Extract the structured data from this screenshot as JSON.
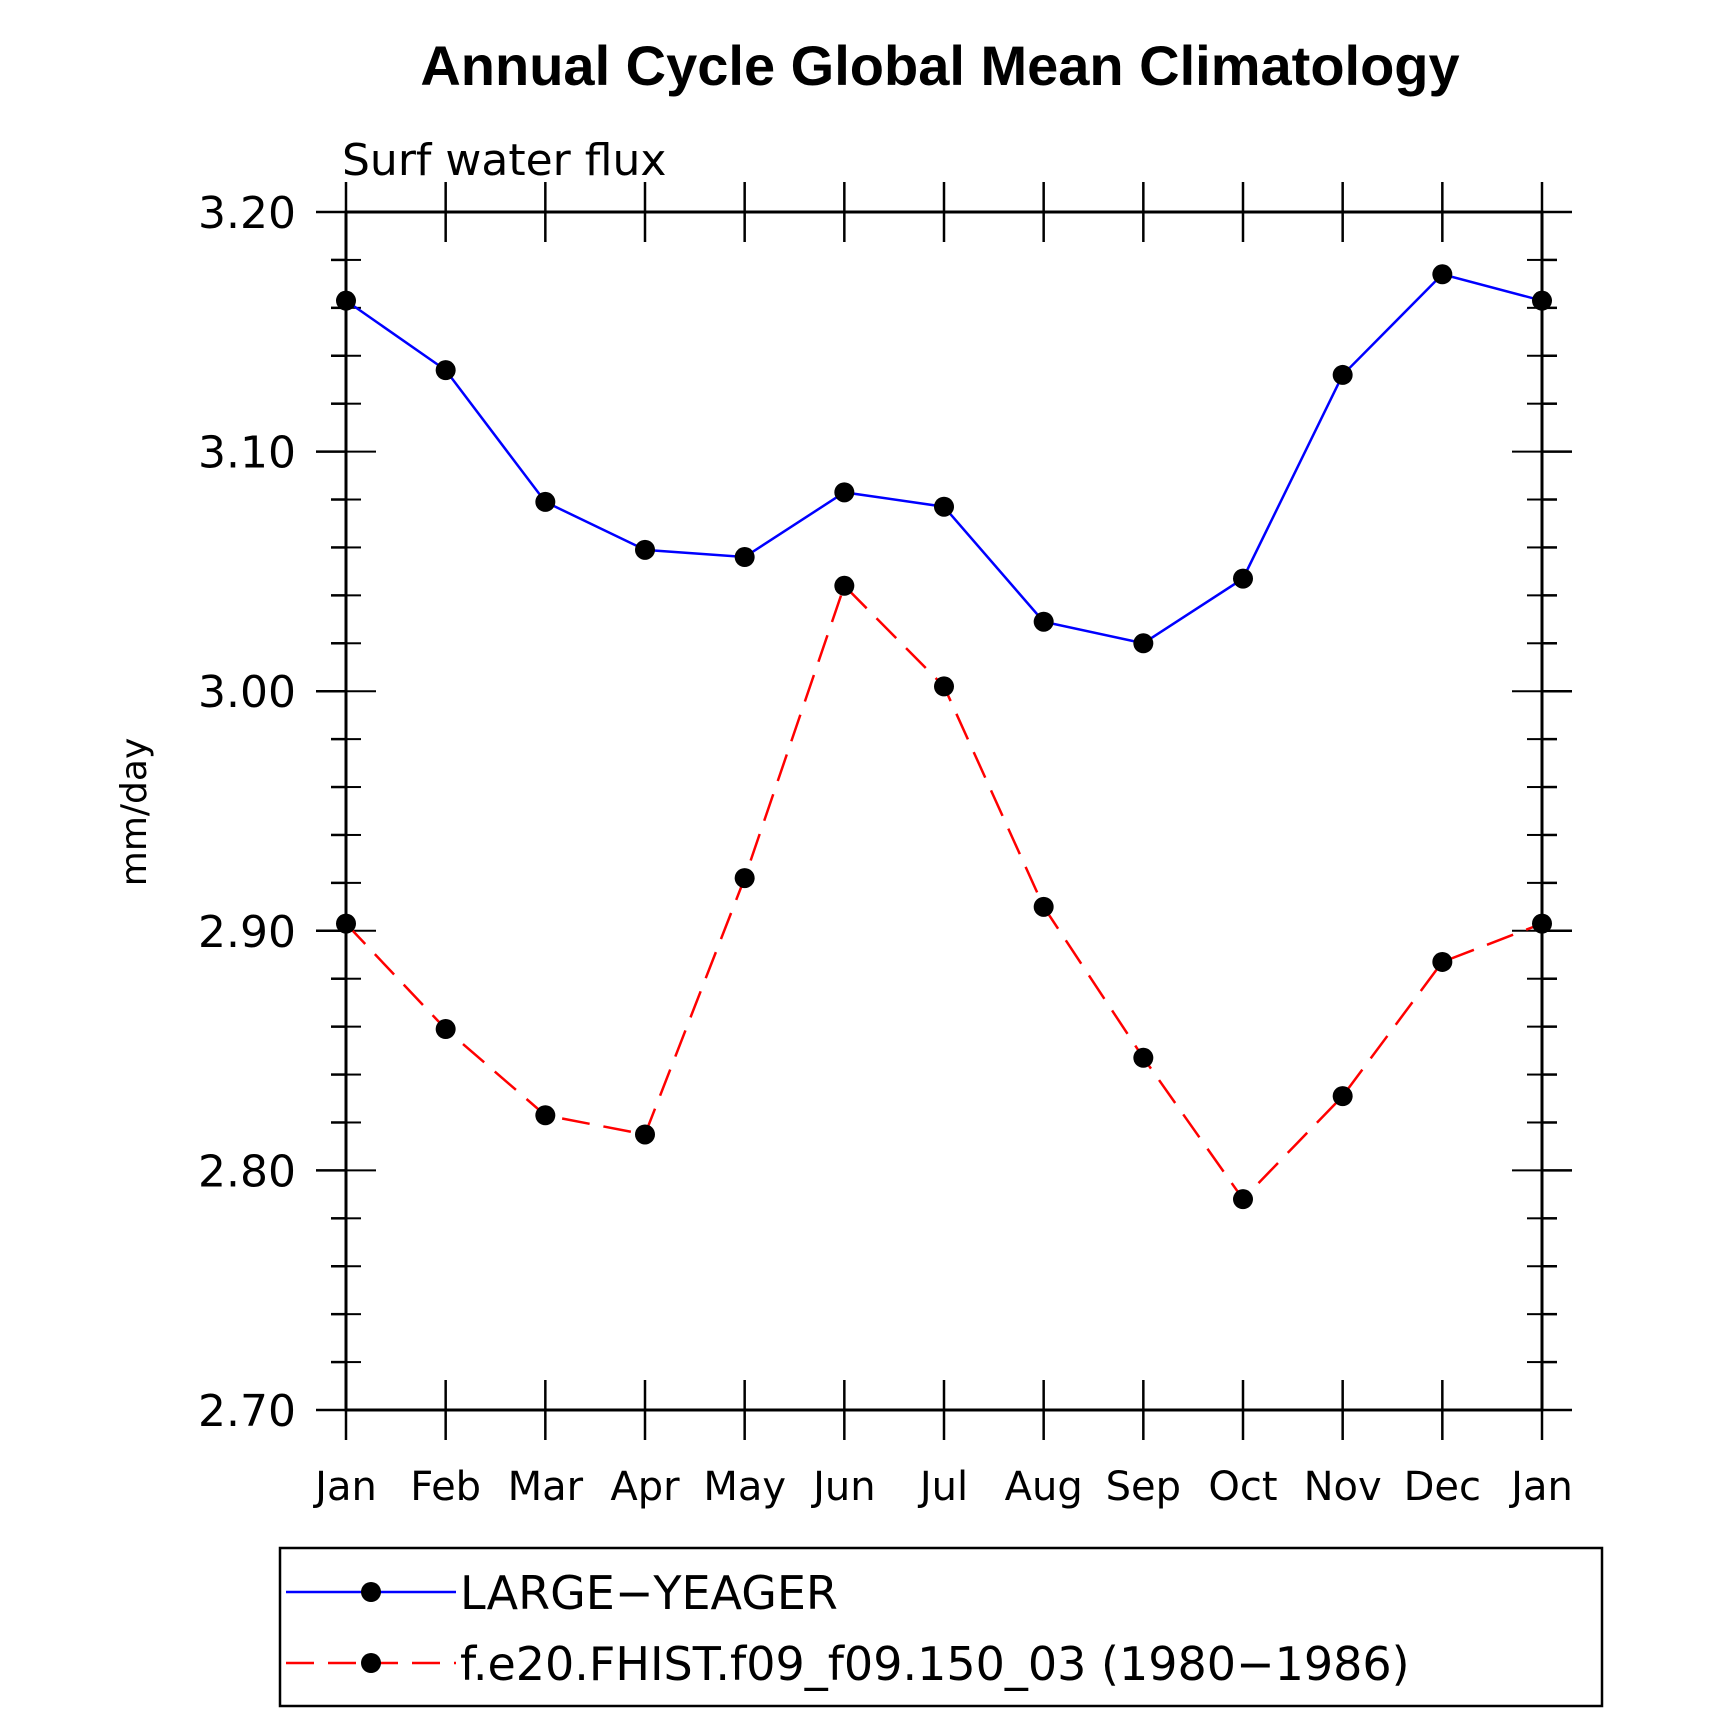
{
  "chart_data": {
    "type": "line",
    "title": "Annual Cycle Global Mean Climatology",
    "subtitle": "Surf water flux",
    "xlabel": "",
    "ylabel": "mm/day",
    "categories": [
      "Jan",
      "Feb",
      "Mar",
      "Apr",
      "May",
      "Jun",
      "Jul",
      "Aug",
      "Sep",
      "Oct",
      "Nov",
      "Dec",
      "Jan"
    ],
    "ylim": [
      2.7,
      3.2
    ],
    "yticks": [
      "2.70",
      "2.80",
      "2.90",
      "3.00",
      "3.10",
      "3.20"
    ],
    "series": [
      {
        "name": "LARGE−YEAGER",
        "color": "#0000ff",
        "dash": "solid",
        "values": [
          3.163,
          3.134,
          3.079,
          3.059,
          3.056,
          3.083,
          3.077,
          3.029,
          3.02,
          3.047,
          3.132,
          3.174,
          3.163
        ]
      },
      {
        "name": "f.e20.FHIST.f09_f09.150_03 (1980−1986)",
        "color": "#ff0000",
        "dash": "dashed",
        "values": [
          2.903,
          2.859,
          2.823,
          2.815,
          2.922,
          3.044,
          3.002,
          2.91,
          2.847,
          2.788,
          2.831,
          2.887,
          2.903
        ]
      }
    ],
    "legend_position": "bottom"
  }
}
